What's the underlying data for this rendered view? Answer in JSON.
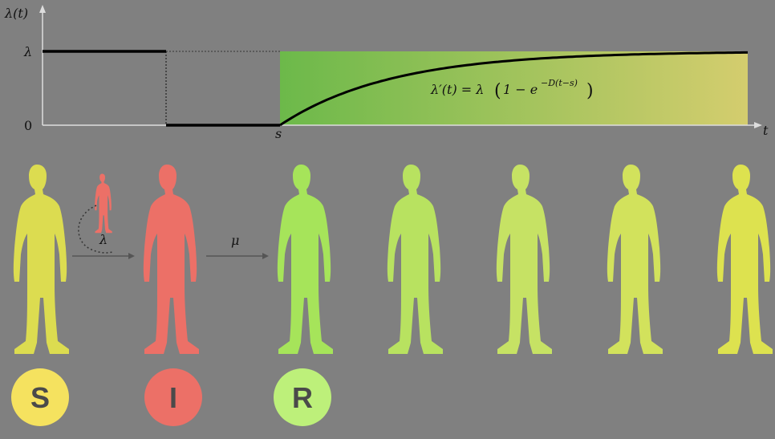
{
  "graph": {
    "y_axis_label": "λ(t)",
    "x_axis_label": "t",
    "tick_lambda": "λ",
    "tick_zero": "0",
    "tick_s": "s",
    "formula_lhs": "λ′(t) = λ",
    "formula_inner": "1 − e",
    "formula_exponent": "−D(t−s)",
    "colors": {
      "axis": "#dddddd",
      "curve": "#000000",
      "gradient_start": "#6cb94a",
      "gradient_end": "#d4cd6e"
    }
  },
  "transitions": {
    "infection_rate": "λ",
    "recovery_rate": "μ"
  },
  "compartments": [
    {
      "letter": "S",
      "color": "#f5e25f"
    },
    {
      "letter": "I",
      "color": "#ec7067"
    },
    {
      "letter": "R",
      "color": "#bdf07a"
    }
  ],
  "figure_colors": [
    "#dcdc50",
    "#ec7067",
    "#a6e45a",
    "#b8e260",
    "#c6e264",
    "#d2e25c",
    "#dde24f"
  ],
  "icons": {
    "figure": "person-silhouette-icon",
    "arrow": "arrow-right-icon"
  }
}
